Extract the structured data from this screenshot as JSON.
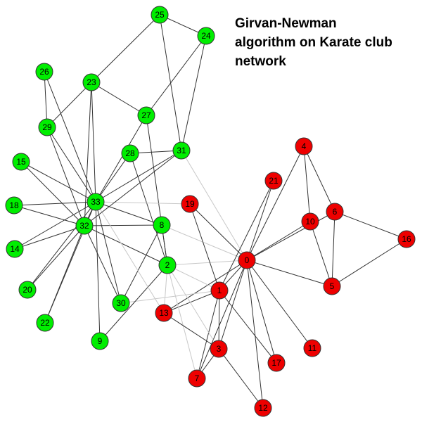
{
  "title_lines": [
    "Girvan-Newman",
    "algorithm on Karate club",
    "network"
  ],
  "colors": {
    "community_a": "#00ee00",
    "community_b": "#ee0000",
    "intra_edge": "#333333",
    "inter_edge": "#c8c8c8",
    "node_stroke": "#333333",
    "label": "#000000"
  },
  "nodes": [
    {
      "id": 0,
      "label": "0",
      "community": "b"
    },
    {
      "id": 1,
      "label": "1",
      "community": "b"
    },
    {
      "id": 2,
      "label": "2",
      "community": "a"
    },
    {
      "id": 3,
      "label": "3",
      "community": "b"
    },
    {
      "id": 4,
      "label": "4",
      "community": "b"
    },
    {
      "id": 5,
      "label": "5",
      "community": "b"
    },
    {
      "id": 6,
      "label": "6",
      "community": "b"
    },
    {
      "id": 7,
      "label": "7",
      "community": "b"
    },
    {
      "id": 8,
      "label": "8",
      "community": "a"
    },
    {
      "id": 9,
      "label": "9",
      "community": "a"
    },
    {
      "id": 10,
      "label": "10",
      "community": "b"
    },
    {
      "id": 11,
      "label": "11",
      "community": "b"
    },
    {
      "id": 12,
      "label": "12",
      "community": "b"
    },
    {
      "id": 13,
      "label": "13",
      "community": "b"
    },
    {
      "id": 14,
      "label": "14",
      "community": "a"
    },
    {
      "id": 15,
      "label": "15",
      "community": "a"
    },
    {
      "id": 16,
      "label": "16",
      "community": "b"
    },
    {
      "id": 17,
      "label": "17",
      "community": "b"
    },
    {
      "id": 18,
      "label": "18",
      "community": "a"
    },
    {
      "id": 19,
      "label": "19",
      "community": "b"
    },
    {
      "id": 20,
      "label": "20",
      "community": "a"
    },
    {
      "id": 21,
      "label": "21",
      "community": "b"
    },
    {
      "id": 22,
      "label": "22",
      "community": "a"
    },
    {
      "id": 23,
      "label": "23",
      "community": "a"
    },
    {
      "id": 24,
      "label": "24",
      "community": "a"
    },
    {
      "id": 25,
      "label": "25",
      "community": "a"
    },
    {
      "id": 26,
      "label": "26",
      "community": "a"
    },
    {
      "id": 27,
      "label": "27",
      "community": "a"
    },
    {
      "id": 28,
      "label": "28",
      "community": "a"
    },
    {
      "id": 29,
      "label": "29",
      "community": "a"
    },
    {
      "id": 30,
      "label": "30",
      "community": "a"
    },
    {
      "id": 31,
      "label": "31",
      "community": "a"
    },
    {
      "id": 32,
      "label": "32",
      "community": "a"
    },
    {
      "id": 33,
      "label": "33",
      "community": "a"
    }
  ],
  "edges": [
    [
      0,
      1
    ],
    [
      0,
      2
    ],
    [
      0,
      3
    ],
    [
      0,
      4
    ],
    [
      0,
      5
    ],
    [
      0,
      6
    ],
    [
      0,
      7
    ],
    [
      0,
      8
    ],
    [
      0,
      10
    ],
    [
      0,
      11
    ],
    [
      0,
      12
    ],
    [
      0,
      13
    ],
    [
      0,
      17
    ],
    [
      0,
      19
    ],
    [
      0,
      21
    ],
    [
      0,
      31
    ],
    [
      1,
      2
    ],
    [
      1,
      3
    ],
    [
      1,
      7
    ],
    [
      1,
      13
    ],
    [
      1,
      17
    ],
    [
      1,
      19
    ],
    [
      1,
      21
    ],
    [
      1,
      30
    ],
    [
      2,
      3
    ],
    [
      2,
      7
    ],
    [
      2,
      8
    ],
    [
      2,
      9
    ],
    [
      2,
      13
    ],
    [
      2,
      27
    ],
    [
      2,
      28
    ],
    [
      2,
      32
    ],
    [
      3,
      7
    ],
    [
      3,
      12
    ],
    [
      3,
      13
    ],
    [
      4,
      6
    ],
    [
      4,
      10
    ],
    [
      5,
      6
    ],
    [
      5,
      10
    ],
    [
      5,
      16
    ],
    [
      6,
      16
    ],
    [
      8,
      30
    ],
    [
      8,
      32
    ],
    [
      8,
      33
    ],
    [
      9,
      33
    ],
    [
      13,
      33
    ],
    [
      14,
      32
    ],
    [
      14,
      33
    ],
    [
      15,
      32
    ],
    [
      15,
      33
    ],
    [
      18,
      32
    ],
    [
      18,
      33
    ],
    [
      19,
      33
    ],
    [
      20,
      32
    ],
    [
      20,
      33
    ],
    [
      22,
      32
    ],
    [
      22,
      33
    ],
    [
      23,
      25
    ],
    [
      23,
      27
    ],
    [
      23,
      29
    ],
    [
      23,
      32
    ],
    [
      23,
      33
    ],
    [
      24,
      25
    ],
    [
      24,
      27
    ],
    [
      24,
      31
    ],
    [
      25,
      31
    ],
    [
      26,
      29
    ],
    [
      26,
      33
    ],
    [
      27,
      33
    ],
    [
      28,
      31
    ],
    [
      28,
      33
    ],
    [
      29,
      32
    ],
    [
      29,
      33
    ],
    [
      30,
      32
    ],
    [
      30,
      33
    ],
    [
      31,
      32
    ],
    [
      31,
      33
    ],
    [
      32,
      33
    ]
  ]
}
